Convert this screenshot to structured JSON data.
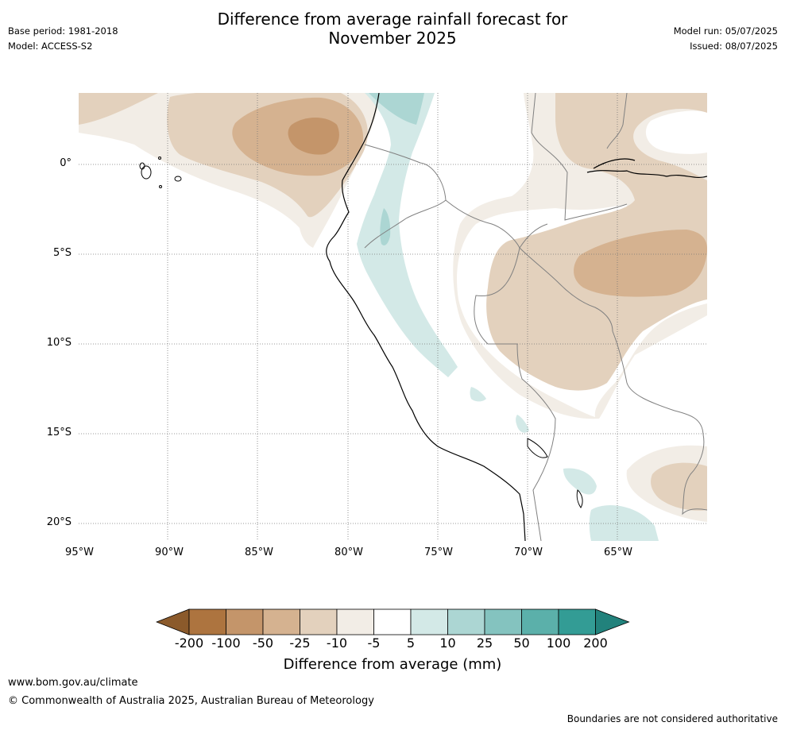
{
  "header": {
    "title_line1": "Difference from average rainfall forecast for",
    "title_line2": "November 2025",
    "base_period": "Base period: 1981-2018",
    "model": "Model: ACCESS-S2",
    "model_run": "Model run: 05/07/2025",
    "issued": "Issued: 08/07/2025"
  },
  "map": {
    "lat_labels": [
      "0°",
      "5°S",
      "10°S",
      "15°S",
      "20°S"
    ],
    "lon_labels": [
      "95°W",
      "90°W",
      "85°W",
      "80°W",
      "75°W",
      "70°W",
      "65°W"
    ]
  },
  "colorbar": {
    "labels": [
      "-200",
      "-100",
      "-50",
      "-25",
      "-10",
      "-5",
      "5",
      "10",
      "25",
      "50",
      "100",
      "200"
    ],
    "colors": [
      "#8b5a2b",
      "#ad743f",
      "#c4956a",
      "#d5b290",
      "#e3d1bd",
      "#f2ede6",
      "#ffffff",
      "#d3e9e7",
      "#acd6d3",
      "#84c3bf",
      "#5bb0aa",
      "#339c95",
      "#22827c"
    ],
    "title": "Difference from average (mm)"
  },
  "footer": {
    "website": "www.bom.gov.au/climate",
    "copyright": "© Commonwealth of Australia 2025, Australian Bureau of Meteorology",
    "disclaimer": "Boundaries are not considered authoritative"
  }
}
